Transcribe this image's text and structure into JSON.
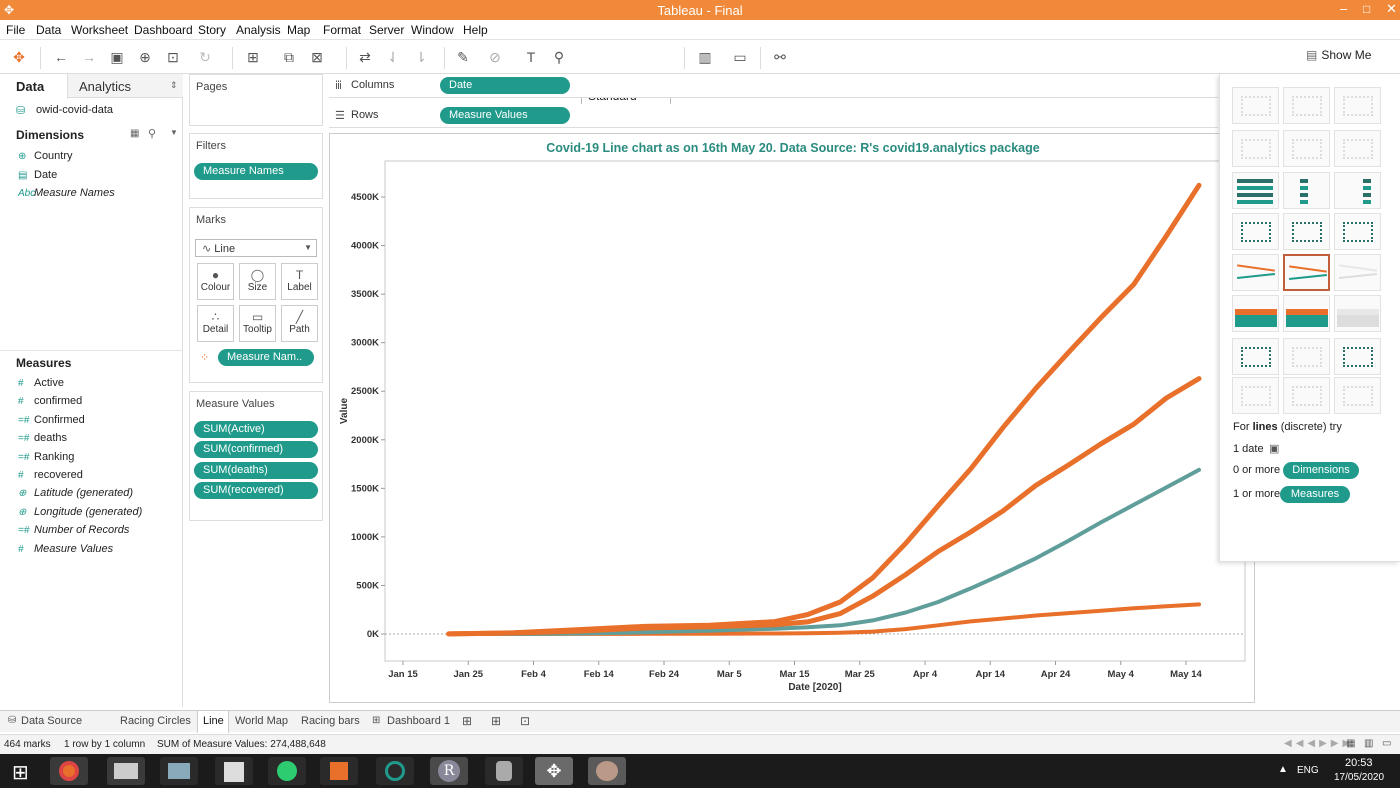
{
  "window": {
    "title": "Tableau - Final"
  },
  "menu": [
    "File",
    "Data",
    "Worksheet",
    "Dashboard",
    "Story",
    "Analysis",
    "Map",
    "Format",
    "Server",
    "Window",
    "Help"
  ],
  "toolbar": {
    "fit": "Standard",
    "show_me": "Show Me"
  },
  "data_pane": {
    "tabs": [
      "Data",
      "Analytics"
    ],
    "source": "owid-covid-data",
    "dimensions_title": "Dimensions",
    "dimensions": [
      {
        "label": "Country",
        "glyph": "⊕",
        "italic": false
      },
      {
        "label": "Date",
        "glyph": "▤",
        "italic": false
      },
      {
        "label": "Measure Names",
        "glyph": "Abc",
        "italic": true
      }
    ],
    "measures_title": "Measures",
    "measures": [
      {
        "label": "Active",
        "glyph": "#",
        "italic": false
      },
      {
        "label": "confirmed",
        "glyph": "#",
        "italic": false
      },
      {
        "label": "Confirmed",
        "glyph": "=#",
        "italic": false
      },
      {
        "label": "deaths",
        "glyph": "=#",
        "italic": false
      },
      {
        "label": "Ranking",
        "glyph": "=#",
        "italic": false
      },
      {
        "label": "recovered",
        "glyph": "#",
        "italic": false
      },
      {
        "label": "Latitude (generated)",
        "glyph": "⊕",
        "italic": true
      },
      {
        "label": "Longitude (generated)",
        "glyph": "⊕",
        "italic": true
      },
      {
        "label": "Number of Records",
        "glyph": "=#",
        "italic": true
      },
      {
        "label": "Measure Values",
        "glyph": "#",
        "italic": true
      }
    ]
  },
  "cards": {
    "pages": "Pages",
    "filters": "Filters",
    "filter_pill": "Measure Names",
    "marks": "Marks",
    "mark_type": "Line",
    "mark_buttons": [
      {
        "label": "Colour",
        "icon": "●"
      },
      {
        "label": "Size",
        "icon": "◯"
      },
      {
        "label": "Label",
        "icon": "T"
      },
      {
        "label": "Detail",
        "icon": "∴"
      },
      {
        "label": "Tooltip",
        "icon": "▭"
      },
      {
        "label": "Path",
        "icon": "╱"
      }
    ],
    "color_pill": "Measure Nam..",
    "measure_values": "Measure Values",
    "mv_pills": [
      "SUM(Active)",
      "SUM(confirmed)",
      "SUM(deaths)",
      "SUM(recovered)"
    ]
  },
  "shelves": {
    "columns_label": "Columns",
    "columns_pill": "Date",
    "rows_label": "Rows",
    "rows_pill": "Measure Values"
  },
  "chart_data": {
    "type": "line",
    "title": "Covid-19 Line chart as on 16th May 20. Data Source: R's covid19.analytics package",
    "xlabel": "Date [2020]",
    "ylabel": "Value",
    "x_ticks": [
      "Jan 15",
      "Jan 25",
      "Feb 4",
      "Feb 14",
      "Feb 24",
      "Mar 5",
      "Mar 15",
      "Mar 25",
      "Apr 4",
      "Apr 14",
      "Apr 24",
      "May 4",
      "May 14"
    ],
    "y_ticks": [
      "0K",
      "500K",
      "1000K",
      "1500K",
      "2000K",
      "2500K",
      "3000K",
      "3500K",
      "4000K",
      "4500K"
    ],
    "ylim": [
      0,
      4800
    ],
    "y_unit": "thousands",
    "x": [
      "Jan 22",
      "Feb 1",
      "Feb 11",
      "Feb 21",
      "Mar 2",
      "Mar 12",
      "Mar 17",
      "Mar 22",
      "Mar 27",
      "Apr 1",
      "Apr 6",
      "Apr 11",
      "Apr 16",
      "Apr 21",
      "Apr 26",
      "May 1",
      "May 6",
      "May 11",
      "May 16"
    ],
    "series": [
      {
        "color": "#e8702a",
        "width": 5,
        "values": [
          1,
          12,
          45,
          78,
          90,
          128,
          200,
          330,
          580,
          930,
          1320,
          1700,
          2130,
          2530,
          2900,
          3260,
          3600,
          4100,
          4620
        ]
      },
      {
        "color": "#e8702a",
        "width": 5,
        "values": [
          1,
          10,
          30,
          62,
          75,
          95,
          125,
          210,
          390,
          610,
          850,
          1050,
          1270,
          1530,
          1740,
          1960,
          2160,
          2430,
          2630
        ]
      },
      {
        "color": "#5f9e9a",
        "width": 4,
        "values": [
          0,
          0,
          5,
          18,
          35,
          55,
          70,
          90,
          140,
          220,
          330,
          470,
          620,
          780,
          960,
          1150,
          1330,
          1510,
          1690
        ]
      },
      {
        "color": "#e8702a",
        "width": 4,
        "values": [
          0,
          0,
          1,
          2,
          3,
          5,
          8,
          13,
          25,
          50,
          90,
          130,
          160,
          190,
          215,
          240,
          265,
          285,
          305
        ]
      }
    ],
    "grid": "off"
  },
  "show_me": {
    "hint_pre": "For ",
    "hint_bold": "lines",
    "hint_post": " (discrete) try",
    "req1": "1 date",
    "req2": "0 or more",
    "req2_pill": "Dimensions",
    "req3": "1 or more",
    "req3_pill": "Measures"
  },
  "tabs": [
    "Data Source",
    "Racing Circles",
    "Line",
    "World Map",
    "Racing bars",
    "Dashboard 1"
  ],
  "active_tab": "Line",
  "status": {
    "marks": "464 marks",
    "rows": "1 row by 1 column",
    "sum": "SUM of Measure Values: 274,488,648"
  },
  "taskbar": {
    "lang": "ENG",
    "time": "20:53",
    "date": "17/05/2020"
  },
  "colors": {
    "accent": "#1f9a8b",
    "orange": "#e8702a",
    "teal": "#5f9e9a",
    "titlebar": "#f08a3a",
    "title_text": "#2a8b7f"
  }
}
